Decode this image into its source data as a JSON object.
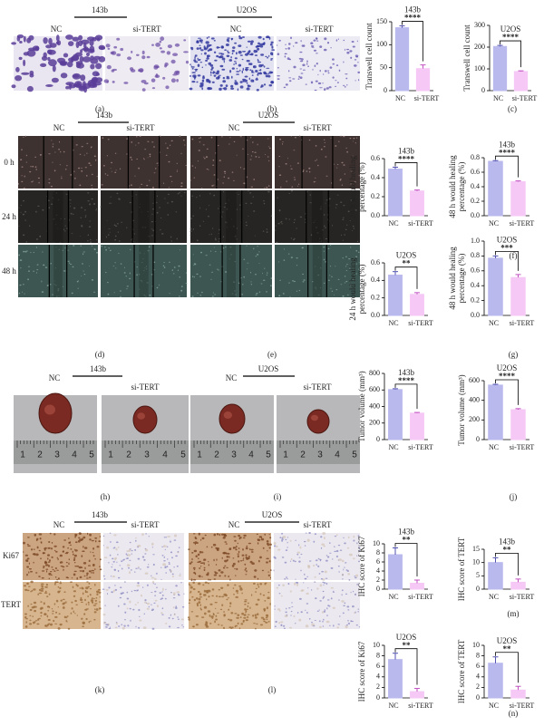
{
  "figure": {
    "groups": [
      "143b",
      "U2OS"
    ],
    "conditions": [
      "NC",
      "si-TERT"
    ],
    "time_points": [
      "0 h",
      "24 h",
      "48 h"
    ],
    "stains": [
      "Ki67",
      "TERT"
    ],
    "ruler_marks": [
      "1",
      "2",
      "3",
      "4",
      "5"
    ],
    "panel_labels": [
      "(a)",
      "(b)",
      "(c)",
      "(d)",
      "(e)",
      "(f)",
      "(g)",
      "(h)",
      "(i)",
      "(j)",
      "(k)",
      "(l)",
      "(m)",
      "(n)"
    ]
  },
  "chart_data": [
    {
      "type": "bar",
      "title": "143b",
      "y_label": [
        "Transwell cell count"
      ],
      "categories": [
        "NC",
        "si-TERT"
      ],
      "colors": [
        "#b9b9ee",
        "#f6c8f6"
      ],
      "values": [
        137,
        48
      ],
      "errors": [
        4,
        8
      ],
      "significance": "****",
      "ylim": [
        0,
        150
      ],
      "yticks": [
        0,
        50,
        100,
        150
      ]
    },
    {
      "type": "bar",
      "title": "U2OS",
      "y_label": [
        "Transwell cell count"
      ],
      "categories": [
        "NC",
        "si-TERT"
      ],
      "colors": [
        "#b9b9ee",
        "#f6c8f6"
      ],
      "values": [
        203,
        88
      ],
      "errors": [
        5,
        3
      ],
      "significance": "****",
      "ylim": [
        0,
        300
      ],
      "yticks": [
        0,
        100,
        200,
        300
      ]
    },
    {
      "type": "bar",
      "title": "143b",
      "y_label": [
        "24 h would healing",
        "percentage (%)"
      ],
      "categories": [
        "NC",
        "si-TERT"
      ],
      "colors": [
        "#b9b9ee",
        "#f6c8f6"
      ],
      "values": [
        0.49,
        0.26
      ],
      "errors": [
        0.02,
        0.01
      ],
      "significance": "****",
      "ylim": [
        0,
        0.6
      ],
      "yticks": [
        {
          "value": 0,
          "label": "0.0"
        },
        0.2,
        0.4,
        0.6
      ]
    },
    {
      "type": "bar",
      "title": "143b",
      "y_label": [
        "48 h would healing",
        "percentage (%)"
      ],
      "categories": [
        "NC",
        "si-TERT"
      ],
      "colors": [
        "#b9b9ee",
        "#f6c8f6"
      ],
      "values": [
        0.75,
        0.47
      ],
      "errors": [
        0.01,
        0.01
      ],
      "significance": "****",
      "ylim": [
        0,
        0.8
      ],
      "yticks": [
        {
          "value": 0,
          "label": "0.0"
        },
        0.2,
        0.4,
        0.6,
        0.8
      ]
    },
    {
      "type": "bar",
      "title": "U2OS",
      "y_label": [
        "24 h would healing",
        "percentage (%)"
      ],
      "categories": [
        "NC",
        "si-TERT"
      ],
      "colors": [
        "#b9b9ee",
        "#f6c8f6"
      ],
      "values": [
        0.46,
        0.24
      ],
      "errors": [
        0.04,
        0.02
      ],
      "significance": "**",
      "ylim": [
        0,
        0.6
      ],
      "yticks": [
        {
          "value": 0,
          "label": "0.0"
        },
        0.2,
        0.4,
        0.6
      ]
    },
    {
      "type": "bar",
      "title": "U2OS",
      "y_label": [
        "48 h would healing",
        "percentage (%)"
      ],
      "categories": [
        "NC",
        "si-TERT"
      ],
      "colors": [
        "#b9b9ee",
        "#f6c8f6"
      ],
      "values": [
        0.77,
        0.51
      ],
      "errors": [
        0.03,
        0.04
      ],
      "significance": "***",
      "ylim": [
        0,
        1
      ],
      "yticks": [
        {
          "value": 0,
          "label": "0.0"
        },
        0.2,
        0.4,
        0.6,
        0.8,
        {
          "value": 1,
          "label": "1.0"
        }
      ]
    },
    {
      "type": "bar",
      "title": "143b",
      "y_label": [
        "Tumor volume (mm³)"
      ],
      "categories": [
        "NC",
        "si-TERT"
      ],
      "colors": [
        "#b9b9ee",
        "#f6c8f6"
      ],
      "values": [
        605,
        320
      ],
      "errors": [
        10,
        8
      ],
      "significance": "****",
      "ylim": [
        0,
        800
      ],
      "yticks": [
        0,
        200,
        400,
        600,
        800
      ]
    },
    {
      "type": "bar",
      "title": "U2OS",
      "y_label": [
        "Tumor volume (mm³)"
      ],
      "categories": [
        "NC",
        "si-TERT"
      ],
      "colors": [
        "#b9b9ee",
        "#f6c8f6"
      ],
      "values": [
        555,
        305
      ],
      "errors": [
        8,
        10
      ],
      "significance": "****",
      "ylim": [
        0,
        600
      ],
      "yticks": [
        0,
        200,
        400,
        600
      ]
    },
    {
      "type": "bar",
      "title": "143b",
      "y_label": [
        "IHC score of Ki67"
      ],
      "categories": [
        "NC",
        "si-TERT"
      ],
      "colors": [
        "#b9b9ee",
        "#f6c8f6"
      ],
      "values": [
        7.6,
        1.3
      ],
      "errors": [
        1.5,
        0.7
      ],
      "significance": "**",
      "ylim": [
        0,
        10
      ],
      "yticks": [
        0,
        2,
        4,
        6,
        8,
        10
      ]
    },
    {
      "type": "bar",
      "title": "143b",
      "y_label": [
        "IHC score of TERT"
      ],
      "categories": [
        "NC",
        "si-TERT"
      ],
      "colors": [
        "#b9b9ee",
        "#f6c8f6"
      ],
      "values": [
        10,
        2.6
      ],
      "errors": [
        1.8,
        1.2
      ],
      "significance": "**",
      "ylim": [
        0,
        15
      ],
      "yticks": [
        0,
        5,
        10,
        15
      ]
    },
    {
      "type": "bar",
      "title": "U2OS",
      "y_label": [
        "IHC score of Ki67"
      ],
      "categories": [
        "NC",
        "si-TERT"
      ],
      "colors": [
        "#b9b9ee",
        "#f6c8f6"
      ],
      "values": [
        7.3,
        1.2
      ],
      "errors": [
        1.2,
        0.6
      ],
      "significance": "**",
      "ylim": [
        0,
        10
      ],
      "yticks": [
        0,
        2,
        4,
        6,
        8,
        10
      ]
    },
    {
      "type": "bar",
      "title": "U2OS",
      "y_label": [
        "IHC score of TERT"
      ],
      "categories": [
        "NC",
        "si-TERT"
      ],
      "colors": [
        "#b9b9ee",
        "#f6c8f6"
      ],
      "values": [
        6.6,
        1.5
      ],
      "errors": [
        1.2,
        0.7
      ],
      "significance": "**",
      "ylim": [
        0,
        10
      ],
      "yticks": [
        0,
        2,
        4,
        6,
        8,
        10
      ]
    }
  ]
}
